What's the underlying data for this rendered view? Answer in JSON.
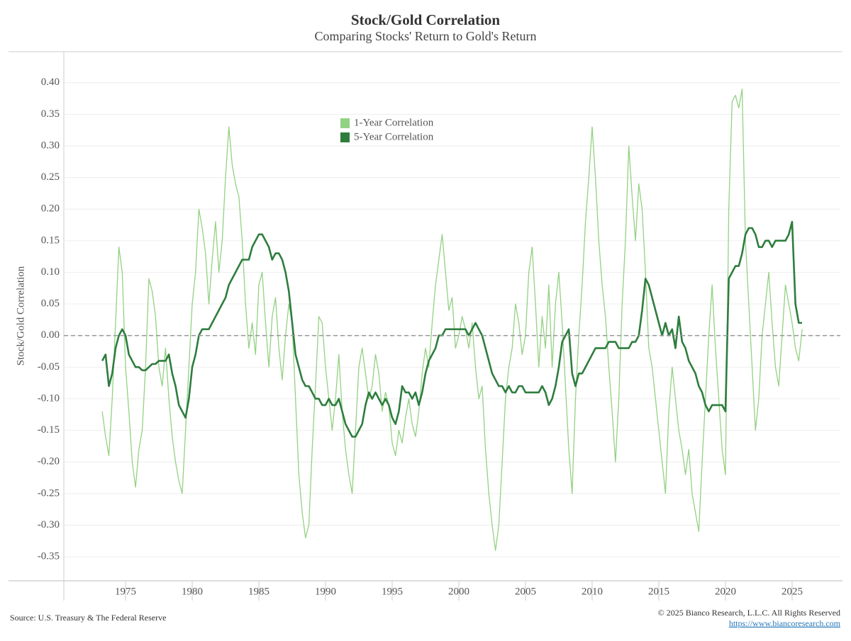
{
  "chart_data": {
    "type": "line",
    "title": "Stock/Gold Correlation",
    "subtitle": "Comparing Stocks' Return to Gold's Return",
    "y_label": "Stock/Gold Correlation",
    "source": "Source: U.S. Treasury & The Federal Reserve",
    "copyright": "© 2025 Bianco Research, L.L.C. All Rights Reserved",
    "url": "https://www.biancoresearch.com",
    "grid": true,
    "hline": 0,
    "legend_position": "top",
    "xlim": [
      1970.37,
      2028.62
    ],
    "ylim": [
      -0.388,
      0.449
    ],
    "xticks": [
      1975,
      1980,
      1985,
      1990,
      1995,
      2000,
      2005,
      2010,
      2015,
      2020,
      2025
    ],
    "yticks": [
      {
        "value": -0.35,
        "label": "-0.35"
      },
      {
        "value": -0.3,
        "label": "-0.30"
      },
      {
        "value": -0.25,
        "label": "-0.25"
      },
      {
        "value": -0.2,
        "label": "-0.20"
      },
      {
        "value": -0.15,
        "label": "-0.15"
      },
      {
        "value": -0.1,
        "label": "-0.10"
      },
      {
        "value": -0.05,
        "label": "-0.05"
      },
      {
        "value": 0,
        "label": "0.00"
      },
      {
        "value": 0.05,
        "label": "0.05"
      },
      {
        "value": 0.1,
        "label": "0.10"
      },
      {
        "value": 0.15,
        "label": "0.15"
      },
      {
        "value": 0.2,
        "label": "0.20"
      },
      {
        "value": 0.25,
        "label": "0.25"
      },
      {
        "value": 0.3,
        "label": "0.30"
      },
      {
        "value": 0.35,
        "label": "0.35"
      },
      {
        "value": 0.4,
        "label": "0.40"
      }
    ],
    "x": [
      1973.25,
      1973.5,
      1973.75,
      1974,
      1974.25,
      1974.5,
      1974.75,
      1975,
      1975.25,
      1975.5,
      1975.75,
      1976,
      1976.25,
      1976.5,
      1976.75,
      1977,
      1977.25,
      1977.5,
      1977.75,
      1978,
      1978.25,
      1978.5,
      1978.75,
      1979,
      1979.25,
      1979.5,
      1979.75,
      1980,
      1980.25,
      1980.5,
      1980.75,
      1981,
      1981.25,
      1981.5,
      1981.75,
      1982,
      1982.25,
      1982.5,
      1982.75,
      1983,
      1983.25,
      1983.5,
      1983.75,
      1984,
      1984.25,
      1984.5,
      1984.75,
      1985,
      1985.25,
      1985.5,
      1985.75,
      1986,
      1986.25,
      1986.5,
      1986.75,
      1987,
      1987.25,
      1987.5,
      1987.75,
      1988,
      1988.25,
      1988.5,
      1988.75,
      1989,
      1989.25,
      1989.5,
      1989.75,
      1990,
      1990.25,
      1990.5,
      1990.75,
      1991,
      1991.25,
      1991.5,
      1991.75,
      1992,
      1992.25,
      1992.5,
      1992.75,
      1993,
      1993.25,
      1993.5,
      1993.75,
      1994,
      1994.25,
      1994.5,
      1994.75,
      1995,
      1995.25,
      1995.5,
      1995.75,
      1996,
      1996.25,
      1996.5,
      1996.75,
      1997,
      1997.25,
      1997.5,
      1997.75,
      1998,
      1998.25,
      1998.5,
      1998.75,
      1999,
      1999.25,
      1999.5,
      1999.75,
      2000,
      2000.25,
      2000.5,
      2000.75,
      2001,
      2001.25,
      2001.5,
      2001.75,
      2002,
      2002.25,
      2002.5,
      2002.75,
      2003,
      2003.25,
      2003.5,
      2003.75,
      2004,
      2004.25,
      2004.5,
      2004.75,
      2005,
      2005.25,
      2005.5,
      2005.75,
      2006,
      2006.25,
      2006.5,
      2006.75,
      2007,
      2007.25,
      2007.5,
      2007.75,
      2008,
      2008.25,
      2008.5,
      2008.75,
      2009,
      2009.25,
      2009.5,
      2009.75,
      2010,
      2010.25,
      2010.5,
      2010.75,
      2011,
      2011.25,
      2011.5,
      2011.75,
      2012,
      2012.25,
      2012.5,
      2012.75,
      2013,
      2013.25,
      2013.5,
      2013.75,
      2014,
      2014.25,
      2014.5,
      2014.75,
      2015,
      2015.25,
      2015.5,
      2015.75,
      2016,
      2016.25,
      2016.5,
      2016.75,
      2017,
      2017.25,
      2017.5,
      2017.75,
      2018,
      2018.25,
      2018.5,
      2018.75,
      2019,
      2019.25,
      2019.5,
      2019.75,
      2020,
      2020.25,
      2020.5,
      2020.75,
      2021,
      2021.25,
      2021.5,
      2021.75,
      2022,
      2022.25,
      2022.5,
      2022.75,
      2023,
      2023.25,
      2023.5,
      2023.75,
      2024,
      2024.25,
      2024.5,
      2024.75,
      2025,
      2025.25,
      2025.5,
      2025.75
    ],
    "series": [
      {
        "name": "1-Year Correlation",
        "color": "#93d183",
        "width": 1.3,
        "values": [
          -0.12,
          -0.16,
          -0.19,
          -0.1,
          0.02,
          0.14,
          0.1,
          -0.05,
          -0.12,
          -0.2,
          -0.24,
          -0.18,
          -0.15,
          -0.05,
          0.09,
          0.07,
          0.03,
          -0.05,
          -0.08,
          -0.02,
          -0.1,
          -0.16,
          -0.2,
          -0.23,
          -0.25,
          -0.15,
          -0.05,
          0.05,
          0.1,
          0.2,
          0.17,
          0.13,
          0.05,
          0.12,
          0.18,
          0.1,
          0.15,
          0.25,
          0.33,
          0.27,
          0.24,
          0.22,
          0.15,
          0.05,
          -0.02,
          0.02,
          -0.03,
          0.08,
          0.1,
          0.02,
          -0.05,
          0.03,
          0.06,
          -0.02,
          -0.07,
          0.0,
          0.05,
          0.02,
          -0.1,
          -0.22,
          -0.28,
          -0.32,
          -0.3,
          -0.18,
          -0.08,
          0.03,
          0.02,
          -0.05,
          -0.1,
          -0.15,
          -0.1,
          -0.03,
          -0.12,
          -0.18,
          -0.22,
          -0.25,
          -0.15,
          -0.05,
          -0.02,
          -0.06,
          -0.1,
          -0.08,
          -0.03,
          -0.06,
          -0.12,
          -0.09,
          -0.11,
          -0.17,
          -0.19,
          -0.15,
          -0.17,
          -0.13,
          -0.1,
          -0.14,
          -0.16,
          -0.12,
          -0.06,
          -0.02,
          -0.05,
          0.02,
          0.08,
          0.12,
          0.16,
          0.1,
          0.04,
          0.06,
          -0.02,
          0.0,
          0.03,
          0.01,
          -0.02,
          0.02,
          -0.05,
          -0.1,
          -0.08,
          -0.18,
          -0.25,
          -0.3,
          -0.34,
          -0.3,
          -0.2,
          -0.1,
          -0.05,
          -0.02,
          0.05,
          0.02,
          -0.03,
          0.0,
          0.1,
          0.14,
          0.05,
          -0.05,
          0.03,
          -0.02,
          0.08,
          -0.05,
          0.05,
          0.1,
          0.02,
          -0.08,
          -0.18,
          -0.25,
          -0.1,
          0.0,
          0.08,
          0.18,
          0.25,
          0.33,
          0.25,
          0.15,
          0.08,
          0.03,
          -0.05,
          -0.12,
          -0.2,
          -0.1,
          0.05,
          0.15,
          0.3,
          0.22,
          0.15,
          0.24,
          0.2,
          0.1,
          -0.02,
          -0.05,
          -0.1,
          -0.15,
          -0.2,
          -0.25,
          -0.12,
          -0.05,
          -0.1,
          -0.15,
          -0.18,
          -0.22,
          -0.18,
          -0.25,
          -0.28,
          -0.31,
          -0.2,
          -0.1,
          0.0,
          0.08,
          -0.02,
          -0.1,
          -0.18,
          -0.22,
          0.2,
          0.37,
          0.38,
          0.36,
          0.39,
          0.15,
          0.05,
          -0.05,
          -0.15,
          -0.1,
          0.0,
          0.05,
          0.1,
          0.02,
          -0.05,
          -0.08,
          0.0,
          0.08,
          0.05,
          0.02,
          -0.02,
          -0.04,
          0.01
        ]
      },
      {
        "name": "5-Year Correlation",
        "color": "#2e7d3e",
        "width": 2.6,
        "values": [
          -0.04,
          -0.03,
          -0.08,
          -0.06,
          -0.02,
          0.0,
          0.01,
          0.0,
          -0.03,
          -0.04,
          -0.05,
          -0.05,
          -0.055,
          -0.055,
          -0.05,
          -0.045,
          -0.045,
          -0.04,
          -0.04,
          -0.04,
          -0.03,
          -0.06,
          -0.08,
          -0.11,
          -0.12,
          -0.13,
          -0.1,
          -0.05,
          -0.03,
          0.0,
          0.01,
          0.01,
          0.01,
          0.02,
          0.03,
          0.04,
          0.05,
          0.06,
          0.08,
          0.09,
          0.1,
          0.11,
          0.12,
          0.12,
          0.12,
          0.14,
          0.15,
          0.16,
          0.16,
          0.15,
          0.14,
          0.12,
          0.13,
          0.13,
          0.12,
          0.1,
          0.07,
          0.02,
          -0.03,
          -0.05,
          -0.07,
          -0.08,
          -0.08,
          -0.09,
          -0.1,
          -0.1,
          -0.11,
          -0.11,
          -0.1,
          -0.11,
          -0.11,
          -0.1,
          -0.12,
          -0.14,
          -0.15,
          -0.16,
          -0.16,
          -0.15,
          -0.14,
          -0.11,
          -0.09,
          -0.1,
          -0.09,
          -0.1,
          -0.11,
          -0.1,
          -0.11,
          -0.13,
          -0.14,
          -0.12,
          -0.08,
          -0.09,
          -0.09,
          -0.1,
          -0.09,
          -0.11,
          -0.09,
          -0.06,
          -0.04,
          -0.03,
          -0.02,
          0.0,
          0.0,
          0.01,
          0.01,
          0.01,
          0.01,
          0.01,
          0.01,
          0.01,
          0.0,
          0.01,
          0.02,
          0.01,
          0.0,
          -0.02,
          -0.04,
          -0.06,
          -0.07,
          -0.08,
          -0.08,
          -0.09,
          -0.08,
          -0.09,
          -0.09,
          -0.08,
          -0.08,
          -0.09,
          -0.09,
          -0.09,
          -0.09,
          -0.09,
          -0.08,
          -0.09,
          -0.11,
          -0.1,
          -0.08,
          -0.05,
          -0.01,
          0.0,
          0.01,
          -0.06,
          -0.08,
          -0.06,
          -0.06,
          -0.05,
          -0.04,
          -0.03,
          -0.02,
          -0.02,
          -0.02,
          -0.02,
          -0.01,
          -0.01,
          -0.01,
          -0.02,
          -0.02,
          -0.02,
          -0.02,
          -0.01,
          -0.01,
          0.0,
          0.04,
          0.09,
          0.08,
          0.06,
          0.04,
          0.02,
          0.0,
          0.02,
          0.0,
          0.01,
          -0.02,
          0.03,
          -0.01,
          -0.02,
          -0.04,
          -0.05,
          -0.06,
          -0.08,
          -0.09,
          -0.11,
          -0.12,
          -0.11,
          -0.11,
          -0.11,
          -0.11,
          -0.12,
          0.09,
          0.1,
          0.11,
          0.11,
          0.13,
          0.16,
          0.17,
          0.17,
          0.16,
          0.14,
          0.14,
          0.15,
          0.15,
          0.14,
          0.15,
          0.15,
          0.15,
          0.15,
          0.16,
          0.18,
          0.05,
          0.02,
          0.02
        ]
      }
    ]
  }
}
